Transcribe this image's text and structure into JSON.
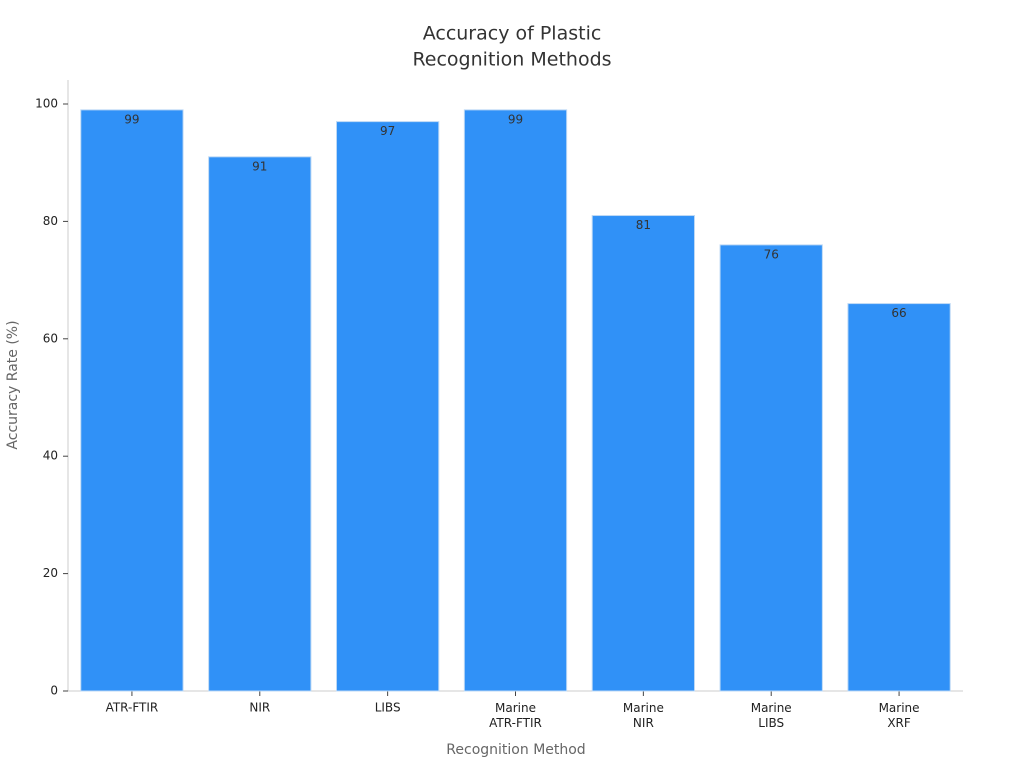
{
  "chart_data": {
    "type": "bar",
    "title": [
      "Accuracy of Plastic",
      "Recognition Methods"
    ],
    "xlabel": "Recognition Method",
    "ylabel": "Accuracy Rate (%)",
    "categories": [
      "ATR-FTIR",
      "NIR",
      "LIBS",
      "Marine\nATR-FTIR",
      "Marine\nNIR",
      "Marine\nLIBS",
      "Marine\nXRF"
    ],
    "values": [
      99,
      91,
      97,
      99,
      81,
      76,
      66
    ],
    "color": "#3091f7",
    "ylim": [
      0,
      100
    ],
    "yticks": [
      0,
      20,
      40,
      60,
      80,
      100
    ],
    "grid": false
  }
}
